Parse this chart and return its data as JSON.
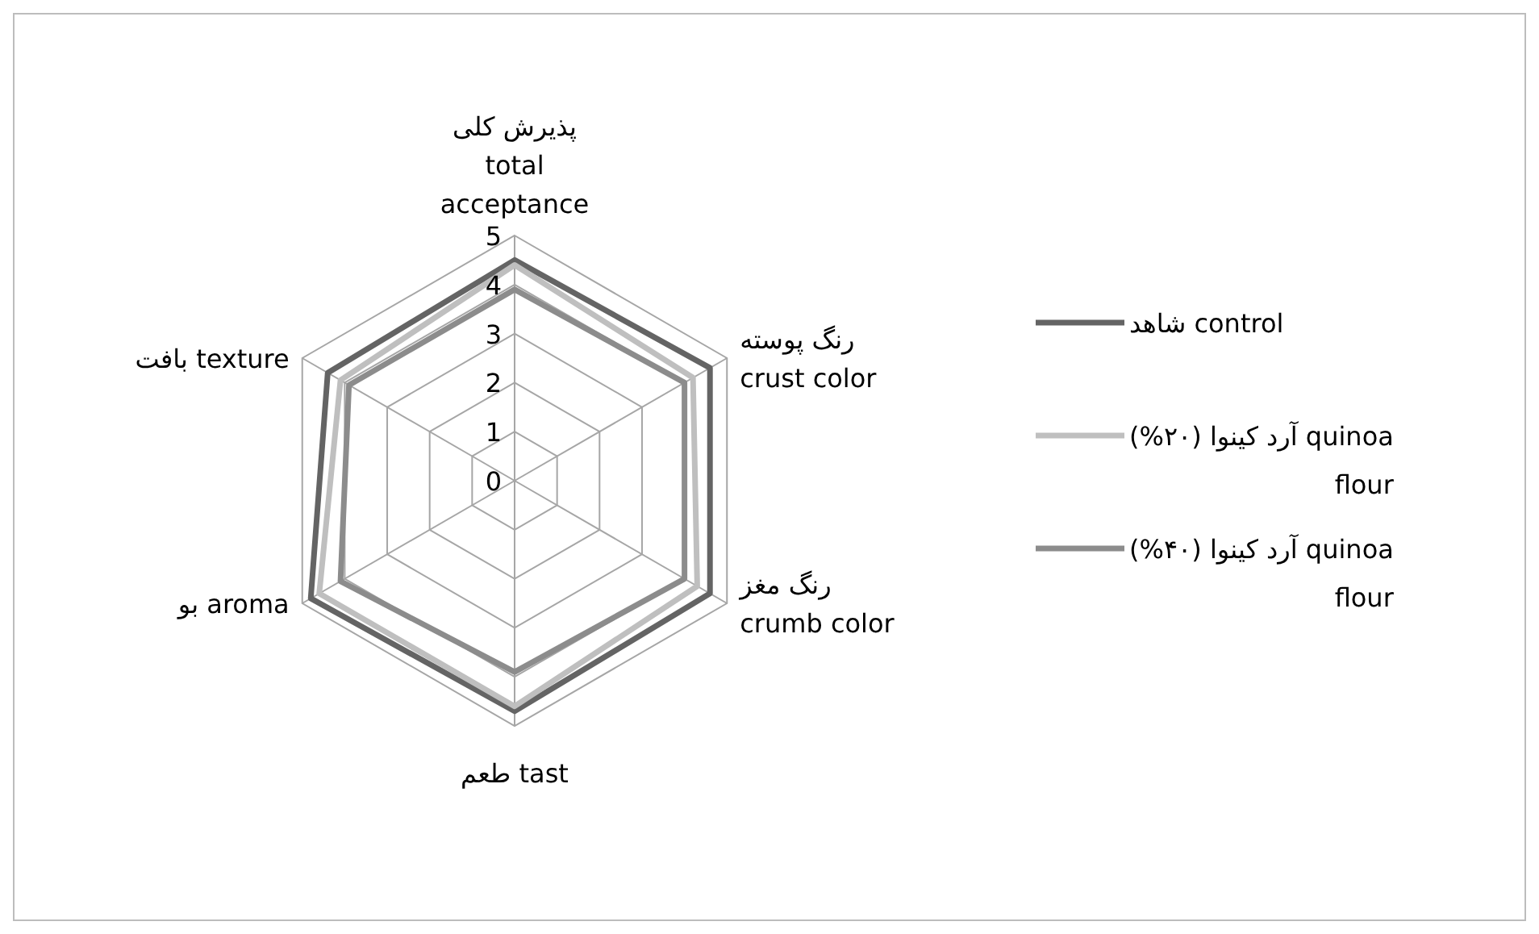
{
  "chart_data": {
    "type": "radar",
    "categories": [
      "پذیرش کلی\ntotal\nacceptance",
      "رنگ پوسته\ncrust color",
      "رنگ مغز\ncrumb color",
      "طعم tast",
      "بو aroma",
      "بافت texture"
    ],
    "series": [
      {
        "name": "شاهد control",
        "color": "#646464",
        "values": [
          4.5,
          4.6,
          4.6,
          4.7,
          4.8,
          4.4
        ]
      },
      {
        "name": "آرد کینوا (۲۰%) quinoa\nflour",
        "color": "#bfbfbf",
        "values": [
          4.4,
          4.2,
          4.3,
          4.6,
          4.6,
          4.1
        ]
      },
      {
        "name": "آرد کینوا (۴۰%) quinoa\nflour",
        "color": "#8c8c8c",
        "values": [
          3.9,
          4.0,
          4.0,
          3.9,
          4.1,
          3.9
        ]
      }
    ],
    "ylim": [
      0,
      5
    ],
    "yticks": [
      0,
      1,
      2,
      3,
      4,
      5
    ],
    "grid": true,
    "legend": "right"
  }
}
